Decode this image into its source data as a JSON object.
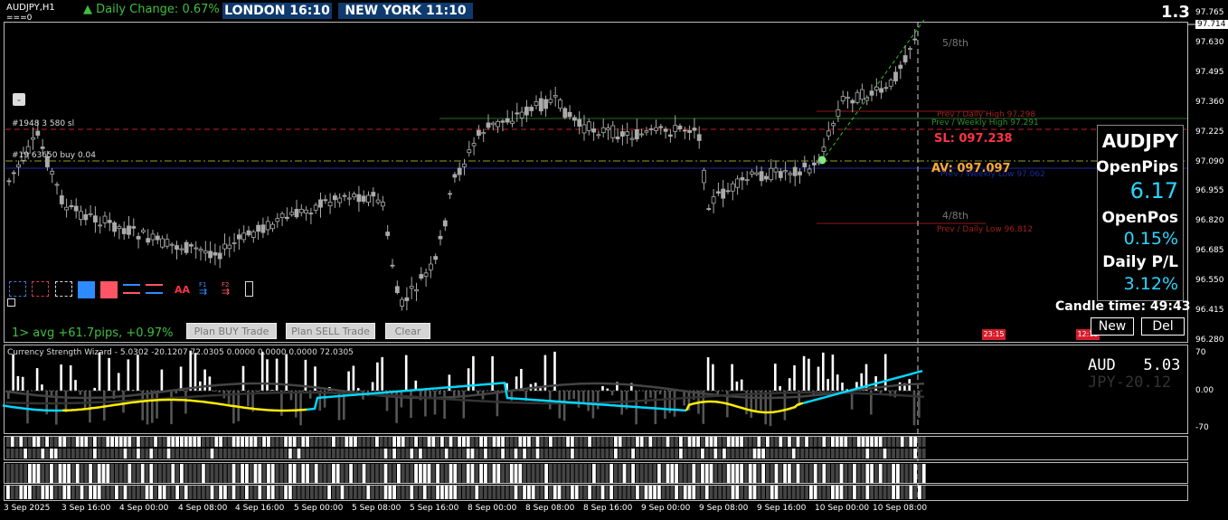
{
  "header": {
    "symbol": "AUDJPY,H1",
    "subline": "===0",
    "daily_change": "▲ Daily Change: 0.67%",
    "london": "LONDON   16:10",
    "newyork": "NEW YORK  11:10",
    "big_number": "1.3"
  },
  "chart_labels": {
    "order1": "#1948 3 580 sl",
    "order2": "#19 63650 buy 0.04",
    "fifth": "5/8th",
    "fourth": "4/8th",
    "prev_daily_high": "Prev / Daily High 97.298",
    "prev_weekly_high": "Prev / Weekly High 97.291",
    "sl": "SL: 097.238",
    "av": "AV: 097.097",
    "weekly_low": "Prev / Weekly Low 97.062",
    "prev_daily_low": "Prev / Daily Low 96.812",
    "avg_text": "1> avg +61.7pips, +0.97%",
    "tag1": "23:15",
    "tag2": "12:15",
    "tool_aa": "AA",
    "tool_f1": "F1",
    "tool_f2": "F2"
  },
  "buttons": {
    "plan_buy": "Plan BUY Trade",
    "plan_sell": "Plan SELL Trade",
    "clear": "Clear",
    "new": "New",
    "del": "Del"
  },
  "panel": {
    "symbol": "AUDJPY",
    "open_pips_label": "OpenPips",
    "open_pips_value": "6.17",
    "open_pos_label": "OpenPos",
    "open_pos_value": "0.15%",
    "daily_pl_label": "Daily P/L",
    "daily_pl_value": "3.12%",
    "candle_time": "Candle time:  49:43"
  },
  "indicator": {
    "title": "Currency Strength Wizard - 5.0302 -20.1207 72.0305 0.0000 0.0000 0.0000 72.0305",
    "aud_label": "AUD   5.03",
    "jpy_label": "JPY-20.12",
    "axis": [
      "70",
      "0.00",
      "-70"
    ]
  },
  "price_axis": [
    "97.765",
    "97.714",
    "97.630",
    "97.495",
    "97.360",
    "97.225",
    "97.090",
    "96.955",
    "96.820",
    "96.685",
    "96.550",
    "96.415",
    "96.280"
  ],
  "time_axis": [
    "3 Sep 2025",
    "3 Sep 16:00",
    "4 Sep 00:00",
    "4 Sep 08:00",
    "4 Sep 16:00",
    "5 Sep 00:00",
    "5 Sep 08:00",
    "5 Sep 16:00",
    "8 Sep 00:00",
    "8 Sep 08:00",
    "8 Sep 16:00",
    "9 Sep 00:00",
    "9 Sep 08:00",
    "9 Sep 16:00",
    "10 Sep 00:00",
    "10 Sep 08:00"
  ],
  "colors": {
    "aud_line": "#00d8ff",
    "jpy_line": "#ffee00",
    "clock_bg": "#0e3a6e",
    "positive": "#3fbf3f",
    "sl": "#ff3344",
    "av": "#ffaa33",
    "panel_value": "#29d6ff"
  }
}
